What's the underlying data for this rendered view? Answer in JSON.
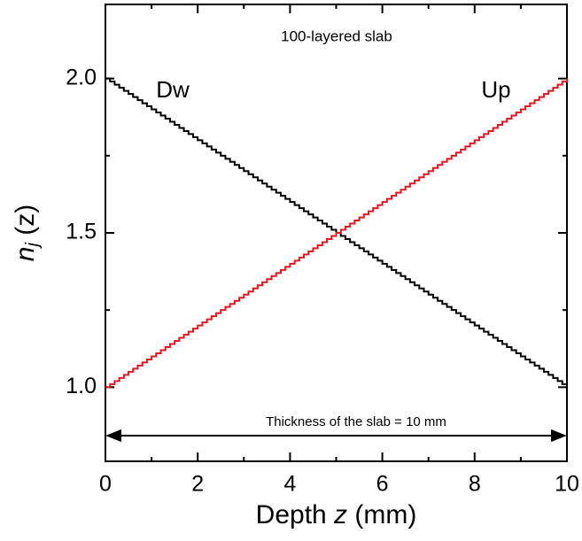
{
  "chart_data": {
    "type": "step",
    "annotation": "100-layered slab",
    "arrow_label": "Thickness of the slab = 10 mm",
    "xlabel": [
      "Depth ",
      "z",
      " (mm)"
    ],
    "ylabel": [
      "n",
      "j",
      " (z)"
    ],
    "xlim": [
      0,
      10
    ],
    "ylim": [
      0.76,
      2.24
    ],
    "xticks": [
      0,
      2,
      4,
      6,
      8,
      10
    ],
    "xminor": [
      1,
      3,
      5,
      7,
      9
    ],
    "yticks": [
      {
        "value": 1,
        "label": "1.0"
      },
      {
        "value": 1.5,
        "label": "1.5"
      },
      {
        "value": 2,
        "label": "2.0"
      }
    ],
    "yminor": [
      1.25,
      1.75
    ],
    "x": [
      0,
      0.1,
      0.2,
      0.3,
      0.4,
      0.5,
      0.6,
      0.7,
      0.8,
      0.9,
      1,
      1.1,
      1.2,
      1.3,
      1.4,
      1.5,
      1.6,
      1.7,
      1.8,
      1.9,
      2,
      2.1,
      2.2,
      2.3,
      2.4,
      2.5,
      2.6,
      2.7,
      2.8,
      2.9,
      3,
      3.1,
      3.2,
      3.3,
      3.4,
      3.5,
      3.6,
      3.7,
      3.8,
      3.9,
      4,
      4.1,
      4.2,
      4.3,
      4.4,
      4.5,
      4.6,
      4.7,
      4.8,
      4.9,
      5,
      5.1,
      5.2,
      5.3,
      5.4,
      5.5,
      5.6,
      5.7,
      5.8,
      5.9,
      6,
      6.1,
      6.2,
      6.3,
      6.4,
      6.5,
      6.6,
      6.7,
      6.8,
      6.9,
      7,
      7.1,
      7.2,
      7.3,
      7.4,
      7.5,
      7.6,
      7.7,
      7.8,
      7.9,
      8,
      8.1,
      8.2,
      8.3,
      8.4,
      8.5,
      8.6,
      8.7,
      8.8,
      8.9,
      9,
      9.1,
      9.2,
      9.3,
      9.4,
      9.5,
      9.6,
      9.7,
      9.8,
      9.9,
      10
    ],
    "series": [
      {
        "name": "Dw",
        "color": "#000000",
        "values": [
          2,
          1.99,
          1.98,
          1.97,
          1.96,
          1.95,
          1.94,
          1.93,
          1.92,
          1.91,
          1.9,
          1.89,
          1.88,
          1.87,
          1.86,
          1.85,
          1.84,
          1.83,
          1.82,
          1.81,
          1.8,
          1.79,
          1.78,
          1.77,
          1.76,
          1.75,
          1.74,
          1.73,
          1.72,
          1.71,
          1.7,
          1.69,
          1.68,
          1.67,
          1.66,
          1.65,
          1.64,
          1.63,
          1.62,
          1.61,
          1.6,
          1.59,
          1.58,
          1.57,
          1.56,
          1.55,
          1.54,
          1.53,
          1.52,
          1.51,
          1.5,
          1.49,
          1.48,
          1.47,
          1.46,
          1.45,
          1.44,
          1.43,
          1.42,
          1.41,
          1.4,
          1.39,
          1.38,
          1.37,
          1.36,
          1.35,
          1.34,
          1.33,
          1.32,
          1.31,
          1.3,
          1.29,
          1.28,
          1.27,
          1.26,
          1.25,
          1.24,
          1.23,
          1.22,
          1.21,
          1.2,
          1.19,
          1.18,
          1.17,
          1.16,
          1.15,
          1.14,
          1.13,
          1.12,
          1.11,
          1.1,
          1.09,
          1.08,
          1.07,
          1.06,
          1.05,
          1.04,
          1.03,
          1.02,
          1.01,
          1
        ]
      },
      {
        "name": "Up",
        "color": "#e8141e",
        "values": [
          1,
          1.01,
          1.02,
          1.03,
          1.04,
          1.05,
          1.06,
          1.07,
          1.08,
          1.09,
          1.1,
          1.11,
          1.12,
          1.13,
          1.14,
          1.15,
          1.16,
          1.17,
          1.18,
          1.19,
          1.2,
          1.21,
          1.22,
          1.23,
          1.24,
          1.25,
          1.26,
          1.27,
          1.28,
          1.29,
          1.3,
          1.31,
          1.32,
          1.33,
          1.34,
          1.35,
          1.36,
          1.37,
          1.38,
          1.39,
          1.4,
          1.41,
          1.42,
          1.43,
          1.44,
          1.45,
          1.46,
          1.47,
          1.48,
          1.49,
          1.5,
          1.51,
          1.52,
          1.53,
          1.54,
          1.55,
          1.56,
          1.57,
          1.58,
          1.59,
          1.6,
          1.61,
          1.62,
          1.63,
          1.64,
          1.65,
          1.66,
          1.67,
          1.68,
          1.69,
          1.7,
          1.71,
          1.72,
          1.73,
          1.74,
          1.75,
          1.76,
          1.77,
          1.78,
          1.79,
          1.8,
          1.81,
          1.82,
          1.83,
          1.84,
          1.85,
          1.86,
          1.87,
          1.88,
          1.89,
          1.9,
          1.91,
          1.92,
          1.93,
          1.94,
          1.95,
          1.96,
          1.97,
          1.98,
          1.99,
          2
        ]
      }
    ]
  }
}
